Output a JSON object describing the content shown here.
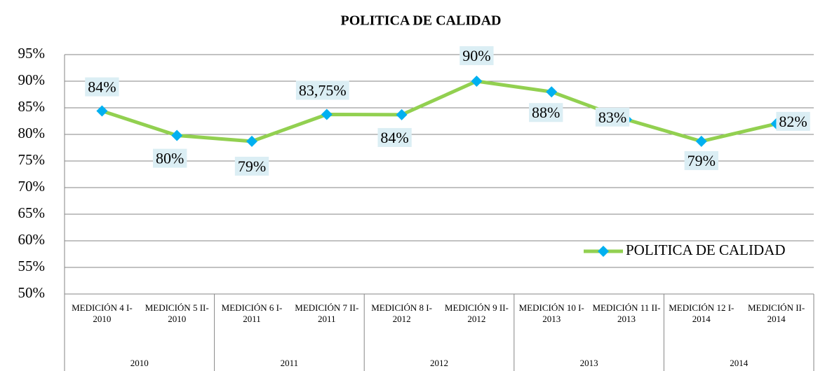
{
  "chart_data": {
    "type": "line",
    "title": "POLITICA DE CALIDAD",
    "categories": [
      "MEDICIÓN 4 I-2010",
      "MEDICIÓN 5 II-2010",
      "MEDICIÓN 6 I-2011",
      "MEDICIÓN 7 II-2011",
      "MEDICIÓN 8 I-2012",
      "MEDICIÓN 9 II-2012",
      "MEDICIÓN 10 I-2013",
      "MEDICIÓN 11 II-2013",
      "MEDICIÓN 12 I-2014",
      "MEDICIÓN II-2014"
    ],
    "groups": [
      "2010",
      "2011",
      "2012",
      "2013",
      "2014"
    ],
    "series": [
      {
        "name": "POLITICA DE CALIDAD",
        "color": "#92d050",
        "marker_color": "#00b0f0",
        "values": [
          84.4,
          79.8,
          78.7,
          83.75,
          83.7,
          90,
          88,
          82.8,
          78.7,
          82
        ],
        "value_labels": [
          "84%",
          "80%",
          "79%",
          "83,75%",
          "84%",
          "90%",
          "88%",
          "83%",
          "79%",
          "82%"
        ]
      }
    ],
    "ylim": [
      50,
      95
    ],
    "yticks": [
      {
        "value": 50,
        "label": "50%"
      },
      {
        "value": 55,
        "label": "55%"
      },
      {
        "value": 60,
        "label": "60%"
      },
      {
        "value": 65,
        "label": "65%"
      },
      {
        "value": 70,
        "label": "70%"
      },
      {
        "value": 75,
        "label": "75%"
      },
      {
        "value": 80,
        "label": "80%"
      },
      {
        "value": 85,
        "label": "85%"
      },
      {
        "value": 90,
        "label": "90%"
      },
      {
        "value": 95,
        "label": "95%"
      }
    ],
    "grid": true,
    "legend": "right"
  }
}
